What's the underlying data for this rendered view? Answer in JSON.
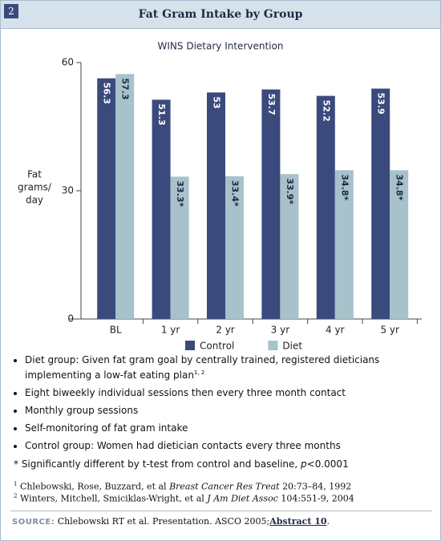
{
  "figure_number": "2",
  "chart_data": {
    "type": "bar",
    "title": "Fat Gram Intake by Group",
    "subtitle": "WINS Dietary Intervention",
    "ylabel": [
      "Fat",
      "grams/",
      "day"
    ],
    "categories": [
      "BL",
      "1 yr",
      "2 yr",
      "3 yr",
      "4 yr",
      "5 yr"
    ],
    "series": [
      {
        "name": "Control",
        "color": "#3a4a7c",
        "values": [
          56.3,
          51.3,
          53,
          53.7,
          52.2,
          53.9
        ],
        "label_color": "#ffffff"
      },
      {
        "name": "Diet",
        "color": "#a8c2cb",
        "values": [
          57.3,
          33.3,
          33.4,
          33.9,
          34.8,
          34.8
        ],
        "value_labels": [
          "57.3",
          "33.3*",
          "33.4*",
          "33.9*",
          "34.8*",
          "34.8*"
        ],
        "label_color": "#1f2a44"
      }
    ],
    "ylim": [
      0,
      60
    ],
    "yticks": [
      0,
      30,
      60
    ],
    "grid": false,
    "legend": "bottom"
  },
  "bullets": [
    {
      "text": "Diet group: Given fat gram goal by centrally trained, registered dieticians implementing a low-fat eating plan",
      "note": "1, 2"
    },
    {
      "text": "Eight biweekly individual sessions then every three month contact"
    },
    {
      "text": "Monthly group sessions"
    },
    {
      "text": "Self-monitoring of fat gram intake"
    },
    {
      "text": "Control group: Women had dietician contacts every three months"
    }
  ],
  "footnote": {
    "text": "* Significantly different by t-test from control and baseline, ",
    "italic": "p",
    "end": "<0.0001"
  },
  "references": [
    {
      "number": "1",
      "authors": "Chlebowski, Rose, Buzzard, et al",
      "journal": "Breast Cancer Res Treat",
      "citation": "20:73–84, 1992"
    },
    {
      "number": "2",
      "authors": "Winters, Mitchell, Smiciklas-Wright, et al",
      "journal": "J Am Diet Assoc",
      "citation": "104:551-9, 2004"
    }
  ],
  "source": {
    "label": "SOURCE:",
    "text": "Chlebowski RT et al. Presentation. ASCO 2005;",
    "link": "Abstract 10",
    "end": "."
  }
}
